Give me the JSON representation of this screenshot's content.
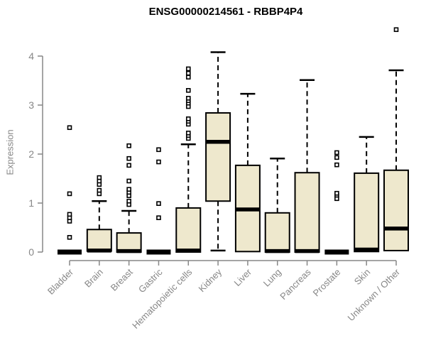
{
  "chart_data": {
    "type": "boxplot",
    "title": "ENSG00000214561 - RBBP4P4",
    "xlabel": "",
    "ylabel": "Expression",
    "ylim": [
      0,
      4.6
    ],
    "yticks": [
      0,
      1,
      2,
      3,
      4
    ],
    "grid": false,
    "legend": false,
    "colors": {
      "box_fill": "#EEE8CD",
      "box_stroke": "#000000",
      "median": "#000000",
      "axis": "#878787",
      "title": "#000000"
    },
    "categories": [
      "Bladder",
      "Brain",
      "Breast",
      "Gastric",
      "Hematopoietic cells",
      "Kidney",
      "Liver",
      "Lung",
      "Pancreas",
      "Prostate",
      "Skin",
      "Unknown / Other"
    ],
    "boxes": [
      {
        "label": "Bladder",
        "q1": 0,
        "median": 0,
        "q3": 0,
        "whisker_low": 0,
        "whisker_high": 0,
        "outliers": [
          0.3,
          0.63,
          0.7,
          0.77,
          1.19,
          2.54
        ]
      },
      {
        "label": "Brain",
        "q1": 0.02,
        "median": 0.03,
        "q3": 0.46,
        "whisker_low": 0,
        "whisker_high": 1.04,
        "outliers": [
          1.19,
          1.26,
          1.38,
          1.45,
          1.52
        ]
      },
      {
        "label": "Breast",
        "q1": 0,
        "median": 0.02,
        "q3": 0.39,
        "whisker_low": 0,
        "whisker_high": 0.84,
        "outliers": [
          0.97,
          1.04,
          1.15,
          1.22,
          1.28,
          1.45,
          1.77,
          1.91,
          2.17
        ]
      },
      {
        "label": "Gastric",
        "q1": 0,
        "median": 0,
        "q3": 0,
        "whisker_low": 0,
        "whisker_high": 0,
        "outliers": [
          0.7,
          0.99,
          1.84,
          2.09
        ]
      },
      {
        "label": "Hematopoietic cells",
        "q1": 0,
        "median": 0.03,
        "q3": 0.9,
        "whisker_low": 0,
        "whisker_high": 2.2,
        "outliers": [
          2.32,
          2.38,
          2.43,
          2.61,
          2.67,
          2.72,
          2.97,
          3.04,
          3.09,
          3.14,
          3.3,
          3.57,
          3.65,
          3.74
        ]
      },
      {
        "label": "Kidney",
        "q1": 1.04,
        "median": 2.25,
        "q3": 2.84,
        "whisker_low": 0.03,
        "whisker_high": 4.08,
        "outliers": []
      },
      {
        "label": "Liver",
        "q1": 0.01,
        "median": 0.87,
        "q3": 1.77,
        "whisker_low": 0,
        "whisker_high": 3.23,
        "outliers": []
      },
      {
        "label": "Lung",
        "q1": 0,
        "median": 0.02,
        "q3": 0.8,
        "whisker_low": 0,
        "whisker_high": 1.91,
        "outliers": []
      },
      {
        "label": "Pancreas",
        "q1": 0,
        "median": 0.02,
        "q3": 1.62,
        "whisker_low": 0,
        "whisker_high": 3.51,
        "outliers": []
      },
      {
        "label": "Prostate",
        "q1": 0,
        "median": 0,
        "q3": 0,
        "whisker_low": 0,
        "whisker_high": 0,
        "outliers": [
          1.09,
          1.16,
          1.2,
          1.78,
          1.93,
          2.03
        ]
      },
      {
        "label": "Skin",
        "q1": 0.01,
        "median": 0.05,
        "q3": 1.61,
        "whisker_low": 0,
        "whisker_high": 2.35,
        "outliers": []
      },
      {
        "label": "Unknown / Other",
        "q1": 0.03,
        "median": 0.48,
        "q3": 1.67,
        "whisker_low": 0,
        "whisker_high": 3.71,
        "outliers": [
          4.54
        ]
      }
    ]
  }
}
